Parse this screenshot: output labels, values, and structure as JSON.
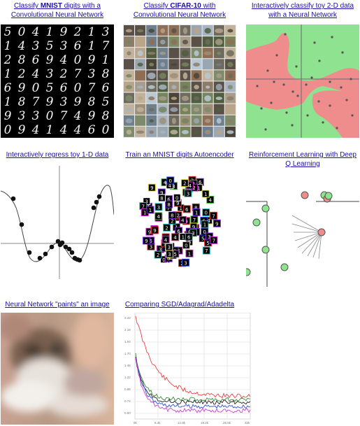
{
  "demos": {
    "mnist": {
      "pre": "Classify ",
      "bold": "MNIST",
      "post": " digits with a",
      "line2": "Convolutional Neural Network",
      "digits": [
        "5",
        "0",
        "4",
        "1",
        "9",
        "2",
        "1",
        "3",
        "1",
        "4",
        "3",
        "5",
        "3",
        "6",
        "1",
        "7",
        "2",
        "8",
        "6",
        "9",
        "4",
        "0",
        "9",
        "1",
        "1",
        "2",
        "4",
        "3",
        "2",
        "7",
        "3",
        "8",
        "6",
        "9",
        "0",
        "5",
        "6",
        "0",
        "7",
        "6",
        "1",
        "8",
        "7",
        "9",
        "3",
        "9",
        "8",
        "5",
        "9",
        "3",
        "3",
        "0",
        "7",
        "4",
        "9",
        "8",
        "0",
        "9",
        "4",
        "1",
        "4",
        "4",
        "6",
        "0"
      ]
    },
    "cifar": {
      "pre": "Classify ",
      "bold": "CIFAR-10",
      "post": " with",
      "line2": "Convolutional Neural Network"
    },
    "toy2d": {
      "line1": "Interactively classify toy 2-D data",
      "line2": "with a Neural Network"
    },
    "regress": {
      "line1": "Interactively regress toy 1-D data"
    },
    "autoencoder": {
      "line1": "Train an MNIST digits Autoencoder"
    },
    "rl": {
      "line1": "Reinforcement Learning with Deep",
      "line2": "Q Learning"
    },
    "paint": {
      "line1": "Neural Network \"paints\" an image"
    },
    "sgd": {
      "line1": "Comparing SGD/Adagrad/Adadelta",
      "ytick_labels": [
        "2.42",
        "2.18",
        "1.94",
        "1.70",
        "1.46",
        "1.22",
        "0.98",
        "0.74",
        "0.50"
      ],
      "xtick_labels": [
        "0k",
        "6.4k",
        "12.8k",
        "19.2k",
        "25.6k",
        "32k"
      ]
    }
  },
  "colors": {
    "link": "#1a0dab",
    "toy_red": "#ef8d8d",
    "toy_green": "#8fe28f"
  }
}
